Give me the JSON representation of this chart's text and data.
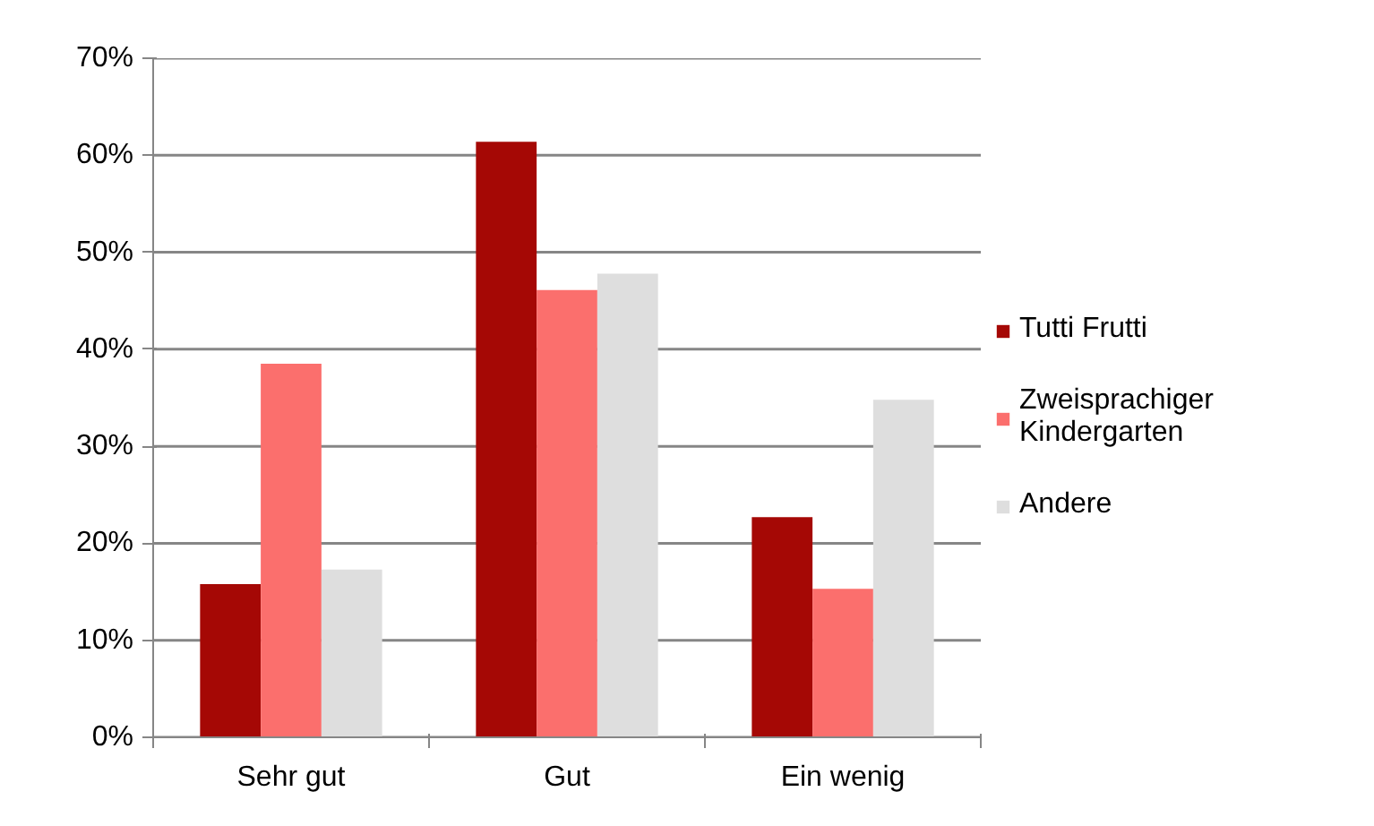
{
  "chart_data": {
    "type": "bar",
    "categories": [
      "Sehr gut",
      "Gut",
      "Ein wenig"
    ],
    "series": [
      {
        "name": "Tutti Frutti",
        "color": "#a50805",
        "values": [
          15.8,
          61.4,
          22.7
        ]
      },
      {
        "name": "Zweisprachiger Kindergarten",
        "color": "#fb6f6d",
        "values": [
          38.5,
          46.1,
          15.3
        ]
      },
      {
        "name": "Andere",
        "color": "#dedede",
        "values": [
          17.3,
          47.8,
          34.8
        ]
      }
    ],
    "ylim": [
      0,
      70
    ],
    "yticks": [
      {
        "value": 0,
        "label": "0%"
      },
      {
        "value": 10,
        "label": "10%"
      },
      {
        "value": 20,
        "label": "20%"
      },
      {
        "value": 30,
        "label": "30%"
      },
      {
        "value": 40,
        "label": "40%"
      },
      {
        "value": 50,
        "label": "50%"
      },
      {
        "value": 60,
        "label": "60%"
      },
      {
        "value": 70,
        "label": "70%"
      }
    ],
    "grid": "y",
    "legend": "right"
  }
}
